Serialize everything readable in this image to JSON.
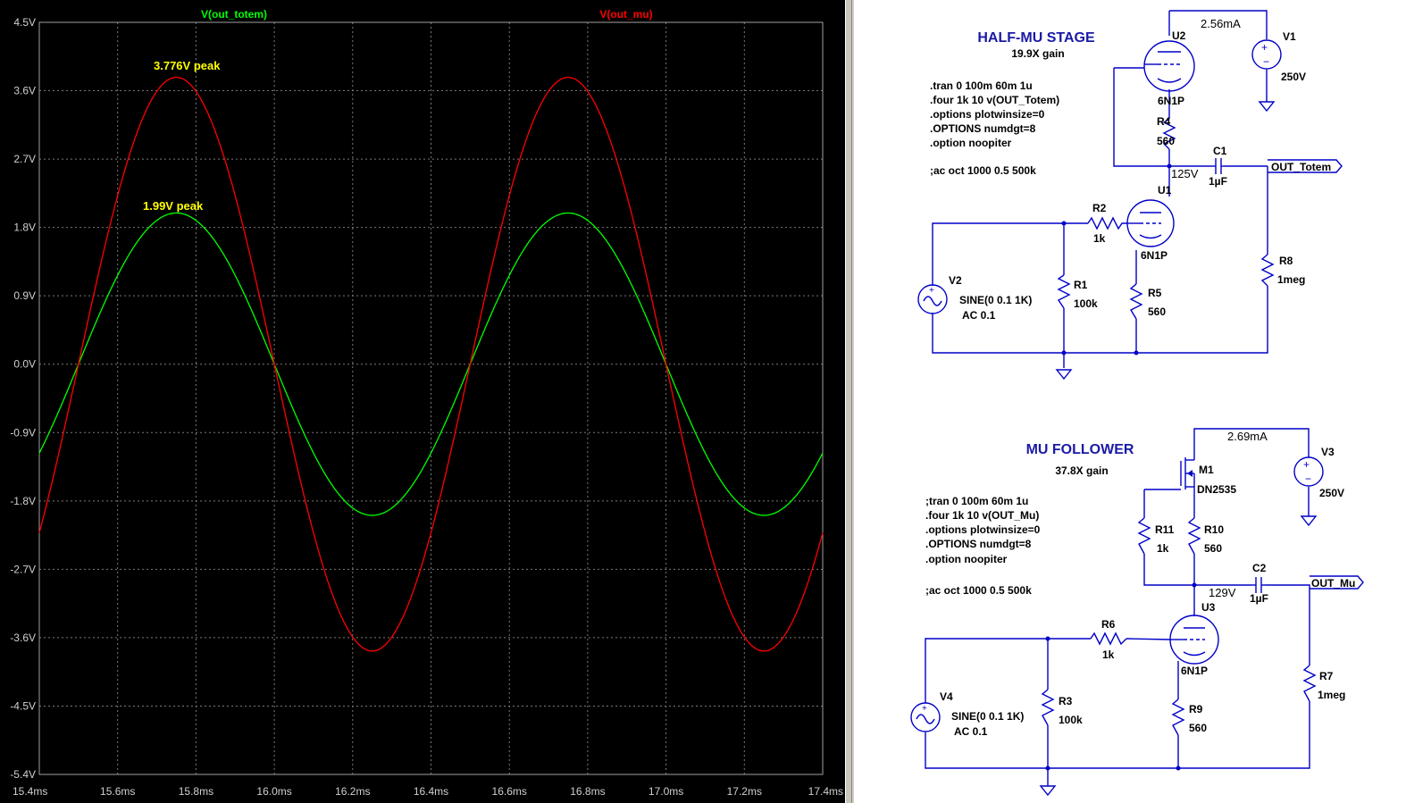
{
  "chart_data": {
    "type": "line",
    "xlabel": "",
    "ylabel": "",
    "xlim": [
      15.4,
      17.4
    ],
    "ylim": [
      -5.4,
      4.5
    ],
    "x_ticks": [
      "15.4ms",
      "15.6ms",
      "15.8ms",
      "16.0ms",
      "16.2ms",
      "16.4ms",
      "16.6ms",
      "16.8ms",
      "17.0ms",
      "17.2ms",
      "17.4ms"
    ],
    "y_ticks": [
      "4.5V",
      "3.6V",
      "2.7V",
      "1.8V",
      "0.9V",
      "0.0V",
      "-0.9V",
      "-1.8V",
      "-2.7V",
      "-3.6V",
      "-4.5V",
      "-5.4V"
    ],
    "grid": true,
    "series": [
      {
        "name": "V(out_totem)",
        "color": "#00ff00",
        "amplitude": 1.99,
        "frequency_khz": 1,
        "x": [
          15.4,
          15.5,
          15.75,
          16.0,
          16.25,
          16.5,
          16.75,
          17.0,
          17.25,
          17.4
        ],
        "values": [
          -1.17,
          0.0,
          1.99,
          0.0,
          -1.99,
          0.0,
          1.99,
          0.0,
          -1.99,
          -1.17
        ]
      },
      {
        "name": "V(out_mu)",
        "color": "#ff0000",
        "amplitude": 3.776,
        "frequency_khz": 1,
        "x": [
          15.4,
          15.5,
          15.75,
          16.0,
          16.25,
          16.5,
          16.75,
          17.0,
          17.25,
          17.4
        ],
        "values": [
          -2.22,
          0.0,
          3.776,
          0.0,
          -3.776,
          0.0,
          3.776,
          0.0,
          -3.776,
          -2.22
        ]
      }
    ],
    "annotations": [
      "3.776V peak",
      "1.99V peak"
    ]
  },
  "plot": {
    "trace_green": "V(out_totem)",
    "trace_red": "V(out_mu)",
    "peak_red": "3.776V peak",
    "peak_green": "1.99V peak",
    "colors": {
      "background": "#000000",
      "grid": "#808080",
      "green": "#00ff00",
      "red": "#ff0000",
      "annotation": "#ffff00"
    }
  },
  "half_mu": {
    "title": "HALF-MU STAGE",
    "gain": "19.9X gain",
    "directives": [
      ".tran 0 100m 60m 1u",
      ".four 1k 10 v(OUT_Totem)",
      ".options plotwinsize=0",
      ".OPTIONS numdgt=8",
      ".option noopiter"
    ],
    "ac": ";ac oct 1000 0.5 500k",
    "current": "2.56mA",
    "node_voltage": "125V",
    "u2": "U2",
    "u2_model": "6N1P",
    "u1": "U1",
    "u1_model": "6N1P",
    "v1": "V1",
    "v1_value": "250V",
    "r4": "R4",
    "r4_value": "560",
    "c1": "C1",
    "c1_value": "1µF",
    "out_label": "OUT_Totem",
    "r2": "R2",
    "r2_value": "1k",
    "v2": "V2",
    "v2_value": "SINE(0 0.1 1K)",
    "v2_ac": "AC 0.1",
    "r1": "R1",
    "r1_value": "100k",
    "r5": "R5",
    "r5_value": "560",
    "r8": "R8",
    "r8_value": "1meg"
  },
  "mu_follower": {
    "title": "MU FOLLOWER",
    "gain": "37.8X gain",
    "directives": [
      ";tran 0 100m 60m 1u",
      ".four 1k 10 v(OUT_Mu)",
      ".options plotwinsize=0",
      ".OPTIONS numdgt=8",
      ".option noopiter"
    ],
    "ac": ";ac oct 1000 0.5 500k",
    "current": "2.69mA",
    "node_voltage": "129V",
    "m1": "M1",
    "m1_model": "DN2535",
    "v3": "V3",
    "v3_value": "250V",
    "r11": "R11",
    "r11_value": "1k",
    "r10": "R10",
    "r10_value": "560",
    "c2": "C2",
    "c2_value": "1µF",
    "out_label": "OUT_Mu",
    "u3": "U3",
    "u3_model": "6N1P",
    "r6": "R6",
    "r6_value": "1k",
    "v4": "V4",
    "v4_value": "SINE(0 0.1 1K)",
    "v4_ac": "AC 0.1",
    "r3": "R3",
    "r3_value": "100k",
    "r9": "R9",
    "r9_value": "560",
    "r7": "R7",
    "r7_value": "1meg"
  }
}
